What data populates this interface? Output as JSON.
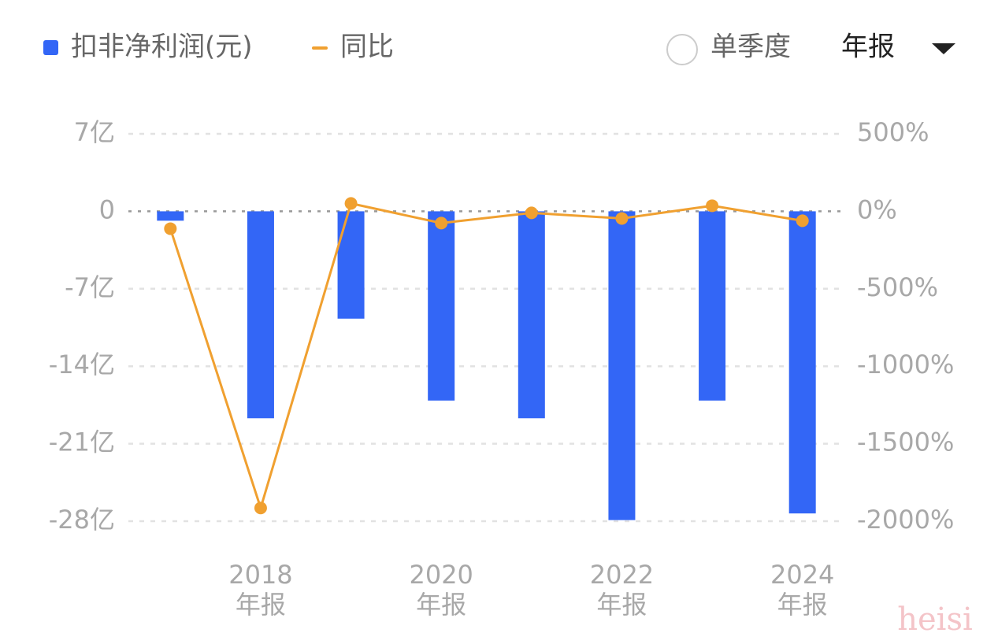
{
  "controls": {
    "single_quarter": "单季度",
    "period": "年报"
  },
  "watermark": "heisi",
  "chart_data": {
    "type": "combo",
    "categories": [
      null,
      "2018\n年报",
      null,
      "2020\n年报",
      null,
      "2022\n年报",
      null,
      "2024\n年报"
    ],
    "series": [
      {
        "name": "扣非净利润(元)",
        "type": "bar",
        "color": "#3366f6",
        "values": [
          -0.85,
          -18.7,
          -9.7,
          -17.1,
          -18.7,
          -27.9,
          -17.1,
          -27.3
        ]
      },
      {
        "name": "同比",
        "type": "line",
        "axis": "y2",
        "color": "#f0a030",
        "values": [
          -112,
          -1915,
          51,
          -76,
          -10,
          -46,
          36,
          -61
        ]
      }
    ],
    "ylim": [
      -28,
      7
    ],
    "yticks": [
      {
        "value": 7,
        "label": "7亿"
      },
      0,
      {
        "value": -7,
        "label": "-7亿"
      },
      {
        "value": -14,
        "label": "-14亿"
      },
      {
        "value": -21,
        "label": "-21亿"
      },
      {
        "value": -28,
        "label": "-28亿"
      }
    ],
    "y2lim": [
      -2000,
      500
    ],
    "y2ticks": [
      {
        "value": 500,
        "label": "500%"
      },
      {
        "value": 0,
        "label": "0%"
      },
      {
        "value": -500,
        "label": "-500%"
      },
      {
        "value": -1000,
        "label": "-1000%"
      },
      {
        "value": -1500,
        "label": "-1500%"
      },
      {
        "value": -2000,
        "label": "-2000%"
      }
    ],
    "grid": true
  }
}
